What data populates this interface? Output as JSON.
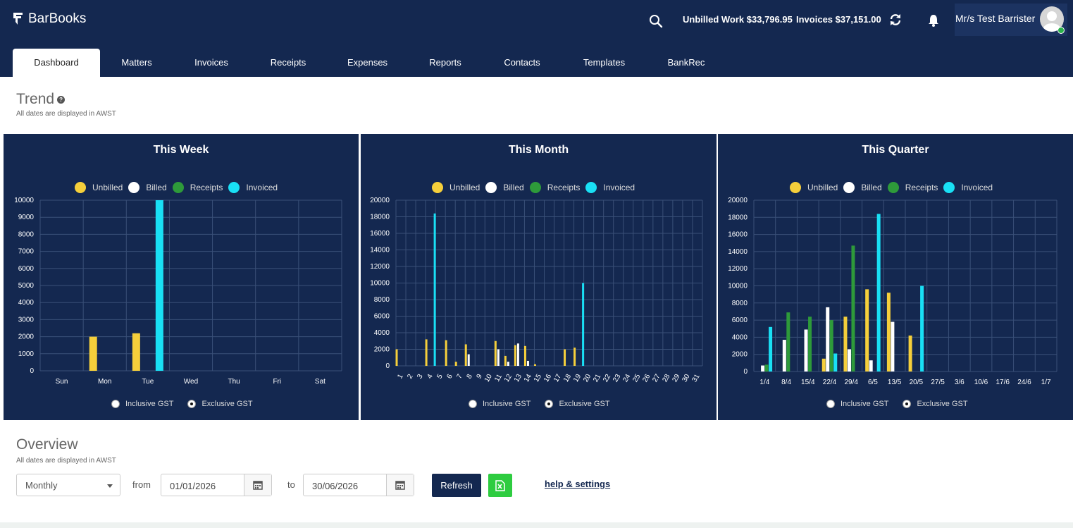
{
  "app": {
    "name": "BarBooks"
  },
  "header": {
    "unbilled_label": "Unbilled Work $33,796.95",
    "invoices_label": "Invoices $37,151.00",
    "user_name": "Mr/s Test Barrister"
  },
  "tabs": [
    {
      "label": "Dashboard",
      "active": true
    },
    {
      "label": "Matters"
    },
    {
      "label": "Invoices"
    },
    {
      "label": "Receipts"
    },
    {
      "label": "Expenses"
    },
    {
      "label": "Reports"
    },
    {
      "label": "Contacts"
    },
    {
      "label": "Templates"
    },
    {
      "label": "BankRec"
    }
  ],
  "trend": {
    "title": "Trend",
    "subtitle": "All dates are displayed in AWST"
  },
  "overview": {
    "title": "Overview",
    "subtitle": "All dates are displayed in AWST",
    "period": "Monthly",
    "from_label": "from",
    "from_date": "01/01/2026",
    "to_label": "to",
    "to_date": "30/06/2026",
    "refresh_label": "Refresh",
    "help_label": "help & settings"
  },
  "legend": [
    "Unbilled",
    "Billed",
    "Receipts",
    "Invoiced"
  ],
  "gst": {
    "inclusive": "Inclusive GST",
    "exclusive": "Exclusive GST",
    "selected": "exclusive"
  },
  "colors": {
    "unbilled": "#f5cf3b",
    "billed": "#ffffff",
    "receipts": "#2e9a3a",
    "invoiced": "#19e0f5",
    "panel": "#142850",
    "grid": "#3a5078"
  },
  "chart_data": [
    {
      "type": "bar",
      "title": "This Week",
      "categories": [
        "Sun",
        "Mon",
        "Tue",
        "Wed",
        "Thu",
        "Fri",
        "Sat"
      ],
      "ylim": [
        0,
        10000
      ],
      "yticks": [
        0,
        1000,
        2000,
        3000,
        4000,
        5000,
        6000,
        7000,
        8000,
        9000,
        10000
      ],
      "series": [
        {
          "name": "Unbilled",
          "values": [
            0,
            2000,
            2200,
            0,
            0,
            0,
            0
          ]
        },
        {
          "name": "Billed",
          "values": [
            0,
            0,
            0,
            0,
            0,
            0,
            0
          ]
        },
        {
          "name": "Receipts",
          "values": [
            0,
            0,
            0,
            0,
            0,
            0,
            0
          ]
        },
        {
          "name": "Invoiced",
          "values": [
            0,
            0,
            10000,
            0,
            0,
            0,
            0
          ]
        }
      ]
    },
    {
      "type": "bar",
      "title": "This Month",
      "categories": [
        "1",
        "2",
        "3",
        "4",
        "5",
        "6",
        "7",
        "8",
        "9",
        "10",
        "11",
        "12",
        "13",
        "14",
        "15",
        "16",
        "17",
        "18",
        "19",
        "20",
        "21",
        "22",
        "23",
        "24",
        "25",
        "26",
        "27",
        "28",
        "29",
        "30",
        "31"
      ],
      "ylim": [
        0,
        20000
      ],
      "yticks": [
        0,
        2000,
        4000,
        6000,
        8000,
        10000,
        12000,
        14000,
        16000,
        18000,
        20000
      ],
      "series": [
        {
          "name": "Unbilled",
          "values": [
            2000,
            0,
            0,
            3200,
            0,
            3100,
            500,
            2600,
            0,
            0,
            3000,
            1200,
            2500,
            2400,
            200,
            0,
            0,
            2000,
            2200,
            0,
            0,
            0,
            0,
            0,
            0,
            0,
            0,
            0,
            0,
            0,
            0
          ]
        },
        {
          "name": "Billed",
          "values": [
            0,
            0,
            0,
            0,
            0,
            0,
            0,
            1400,
            0,
            0,
            2000,
            500,
            2700,
            600,
            0,
            0,
            0,
            0,
            0,
            0,
            0,
            0,
            0,
            0,
            0,
            0,
            0,
            0,
            0,
            0,
            0
          ]
        },
        {
          "name": "Receipts",
          "values": [
            0,
            0,
            0,
            0,
            0,
            0,
            0,
            0,
            0,
            0,
            0,
            0,
            0,
            0,
            0,
            0,
            0,
            0,
            0,
            0,
            0,
            0,
            0,
            0,
            0,
            0,
            0,
            0,
            0,
            0,
            0
          ]
        },
        {
          "name": "Invoiced",
          "values": [
            0,
            0,
            0,
            18400,
            0,
            0,
            0,
            0,
            0,
            0,
            0,
            0,
            0,
            0,
            0,
            0,
            0,
            0,
            10000,
            0,
            0,
            0,
            0,
            0,
            0,
            0,
            0,
            0,
            0,
            0,
            0
          ]
        }
      ]
    },
    {
      "type": "bar",
      "title": "This Quarter",
      "categories": [
        "1/4",
        "8/4",
        "15/4",
        "22/4",
        "29/4",
        "6/5",
        "13/5",
        "20/5",
        "27/5",
        "3/6",
        "10/6",
        "17/6",
        "24/6",
        "1/7"
      ],
      "ylim": [
        0,
        20000
      ],
      "yticks": [
        0,
        2000,
        4000,
        6000,
        8000,
        10000,
        12000,
        14000,
        16000,
        18000,
        20000
      ],
      "series": [
        {
          "name": "Unbilled",
          "values": [
            0,
            0,
            0,
            1500,
            6400,
            9600,
            9200,
            4200,
            0,
            0,
            0,
            0,
            0,
            0
          ]
        },
        {
          "name": "Billed",
          "values": [
            700,
            3700,
            4900,
            7500,
            2600,
            1300,
            5800,
            0,
            0,
            0,
            0,
            0,
            0,
            0
          ]
        },
        {
          "name": "Receipts",
          "values": [
            800,
            6900,
            6400,
            6000,
            14700,
            0,
            0,
            0,
            0,
            0,
            0,
            0,
            0,
            0
          ]
        },
        {
          "name": "Invoiced",
          "values": [
            5200,
            0,
            0,
            2100,
            0,
            18400,
            0,
            10000,
            0,
            0,
            0,
            0,
            0,
            0
          ]
        }
      ]
    }
  ]
}
